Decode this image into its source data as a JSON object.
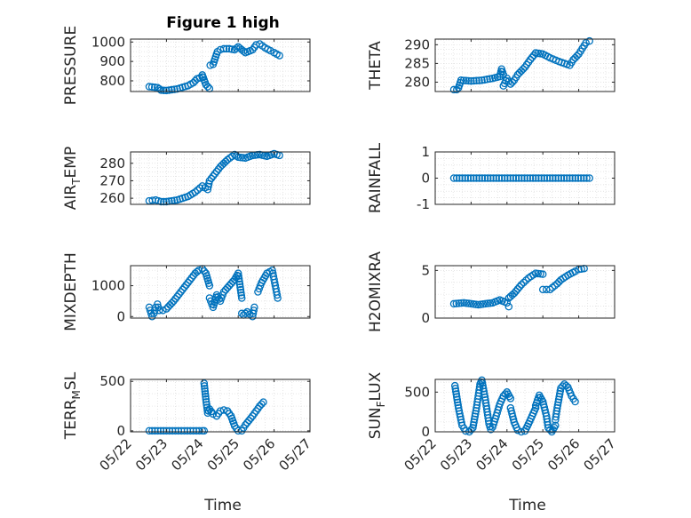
{
  "figure": {
    "title": "Figure 1 high",
    "xlabel_left": "Time",
    "xlabel_right": "Time"
  },
  "style": {
    "marker_color": "#0072BD",
    "axis_color": "#262626",
    "grid_color": "#dcdcdc",
    "background": "#ffffff"
  },
  "x_axis": {
    "range": [
      "05/22",
      "05/27"
    ],
    "tick_values": [
      0,
      1,
      2,
      3,
      4,
      5
    ],
    "tick_labels": [
      "05/22",
      "05/23",
      "05/24",
      "05/25",
      "05/26",
      "05/27"
    ]
  },
  "chart_data": [
    {
      "type": "scatter",
      "id": "pressure",
      "title": "Figure 1 high",
      "ylabel": "PRESSURE",
      "ylabel_sub": "",
      "ylim": [
        745,
        1015
      ],
      "yticks": [
        800,
        900,
        1000
      ],
      "grid": true,
      "segments": [
        {
          "x": [
            0.52,
            0.75,
            0.85,
            1.0,
            1.3,
            1.6,
            1.75,
            1.85,
            2.0
          ],
          "y": [
            770,
            765,
            752,
            750,
            758,
            775,
            790,
            810,
            820
          ]
        },
        {
          "x": [
            2.0,
            2.1,
            2.2
          ],
          "y": [
            830,
            780,
            760
          ]
        },
        {
          "x": [
            2.22,
            2.3,
            2.42,
            2.5,
            2.6,
            2.75,
            2.9,
            3.0,
            3.1,
            3.2,
            3.4,
            3.5,
            3.6,
            3.75,
            3.9,
            4.0,
            4.15
          ],
          "y": [
            880,
            885,
            950,
            960,
            965,
            965,
            960,
            975,
            960,
            945,
            960,
            985,
            990,
            970,
            955,
            945,
            930
          ]
        }
      ]
    },
    {
      "type": "scatter",
      "id": "theta",
      "ylabel": "THETA",
      "ylabel_sub": "",
      "ylim": [
        277.5,
        291.5
      ],
      "yticks": [
        280,
        285,
        290
      ],
      "grid": true,
      "segments": [
        {
          "x": [
            0.52,
            0.6,
            0.65,
            0.72
          ],
          "y": [
            278,
            278,
            278.5,
            280.5
          ]
        },
        {
          "x": [
            0.72,
            1.0,
            1.3,
            1.6,
            1.8,
            1.85,
            1.9
          ],
          "y": [
            280.5,
            280.3,
            280.5,
            281,
            281.5,
            283.5,
            282
          ]
        },
        {
          "x": [
            1.9,
            2.0,
            2.1,
            2.2,
            2.3,
            2.5,
            2.65,
            2.8
          ],
          "y": [
            279,
            281,
            279.5,
            280.5,
            282,
            284,
            286,
            287.8
          ]
        },
        {
          "x": [
            2.8,
            3.0,
            3.2,
            3.45,
            3.6,
            3.75,
            3.85,
            4.0,
            4.1,
            4.2,
            4.3
          ],
          "y": [
            287.8,
            287.5,
            286.5,
            285.5,
            285,
            284.5,
            286,
            287.5,
            289,
            290.5,
            291
          ]
        }
      ]
    },
    {
      "type": "scatter",
      "id": "air_temp",
      "ylabel": "AIR",
      "ylabel_sub": "T",
      "ylabel_suffix": "EMP",
      "ylim": [
        256.5,
        286.5
      ],
      "yticks": [
        260,
        270,
        280
      ],
      "grid": true,
      "segments": [
        {
          "x": [
            0.52,
            0.7,
            0.85,
            1.0,
            1.3,
            1.6,
            1.8,
            2.0,
            2.15,
            2.2,
            2.35,
            2.5,
            2.7,
            2.9,
            3.0,
            3.2,
            3.4,
            3.6,
            3.8,
            4.0,
            4.15
          ],
          "y": [
            258.5,
            259,
            258,
            258,
            259,
            261,
            263.5,
            267,
            265,
            270,
            274,
            278,
            282,
            285,
            283.5,
            283,
            284.5,
            285,
            284,
            285.5,
            284.5
          ]
        }
      ]
    },
    {
      "type": "scatter",
      "id": "rainfall",
      "ylabel": "RAINFALL",
      "ylabel_sub": "",
      "ylim": [
        -1,
        1
      ],
      "yticks": [
        -1,
        0,
        1
      ],
      "grid": true,
      "segments": [
        {
          "x": [
            0.52,
            4.3
          ],
          "y": [
            0,
            0
          ]
        }
      ]
    },
    {
      "type": "scatter",
      "id": "mixdepth",
      "ylabel": "MIXDEPTH",
      "ylabel_sub": "",
      "ylim": [
        -50,
        1650
      ],
      "yticks": [
        0,
        1000
      ],
      "grid": true,
      "segments": [
        {
          "x": [
            0.52,
            0.6,
            0.65,
            0.7,
            0.75,
            0.8,
            0.9,
            1.0,
            1.2,
            1.4,
            1.6,
            1.7,
            1.8,
            1.9,
            2.0,
            2.1,
            2.2
          ],
          "y": [
            300,
            0,
            100,
            300,
            400,
            200,
            200,
            250,
            500,
            800,
            1100,
            1250,
            1400,
            1500,
            1550,
            1400,
            1000
          ]
        },
        {
          "x": [
            2.2,
            2.3,
            2.4,
            2.5,
            2.6,
            2.75,
            2.9,
            3.0,
            3.1
          ],
          "y": [
            600,
            300,
            700,
            500,
            800,
            1000,
            1200,
            1400,
            600
          ]
        },
        {
          "x": [
            3.1,
            3.15,
            3.25,
            3.4,
            3.45
          ],
          "y": [
            100,
            50,
            150,
            0,
            300
          ]
        },
        {
          "x": [
            3.55,
            3.65,
            3.8,
            3.95,
            4.0,
            4.05,
            4.1
          ],
          "y": [
            800,
            1100,
            1400,
            1500,
            1200,
            900,
            600
          ]
        }
      ]
    },
    {
      "type": "scatter",
      "id": "h2omixra",
      "ylabel": "H2OMIXRA",
      "ylabel_sub": "",
      "ylim": [
        0,
        5.5
      ],
      "yticks": [
        0,
        5
      ],
      "grid": true,
      "segments": [
        {
          "x": [
            0.52,
            0.8,
            1.0,
            1.2,
            1.4,
            1.6,
            1.8,
            2.0,
            2.05
          ],
          "y": [
            1.5,
            1.6,
            1.5,
            1.4,
            1.5,
            1.6,
            1.9,
            1.6,
            1.2
          ]
        },
        {
          "x": [
            2.05,
            2.2,
            2.4,
            2.6,
            2.8,
            3.0
          ],
          "y": [
            2.1,
            2.6,
            3.5,
            4.2,
            4.7,
            4.6
          ]
        },
        {
          "x": [
            3.0,
            3.1,
            3.2,
            3.4,
            3.5,
            3.7,
            3.9,
            4.0,
            4.15
          ],
          "y": [
            3.0,
            3.0,
            3.0,
            3.6,
            4.0,
            4.5,
            4.9,
            5.1,
            5.2
          ]
        }
      ]
    },
    {
      "type": "scatter",
      "id": "terr_msl",
      "ylabel": "TERR",
      "ylabel_sub": "M",
      "ylabel_suffix": "SL",
      "ylim": [
        -10,
        520
      ],
      "yticks": [
        0,
        500
      ],
      "grid": true,
      "segments": [
        {
          "x": [
            0.52,
            1.0,
            1.5,
            2.0,
            2.05
          ],
          "y": [
            0,
            0,
            0,
            0,
            0
          ]
        },
        {
          "x": [
            2.05,
            2.1,
            2.15,
            2.2,
            2.3,
            2.4,
            2.5,
            2.6,
            2.7
          ],
          "y": [
            480,
            320,
            180,
            220,
            170,
            150,
            200,
            210,
            200
          ]
        },
        {
          "x": [
            2.7,
            2.8,
            2.9,
            3.0,
            3.1,
            3.2,
            3.4,
            3.5,
            3.6,
            3.7
          ],
          "y": [
            200,
            150,
            50,
            0,
            0,
            60,
            150,
            200,
            250,
            290
          ]
        }
      ]
    },
    {
      "type": "scatter",
      "id": "sun_flux",
      "ylabel": "SUN",
      "ylabel_sub": "F",
      "ylabel_suffix": "LUX",
      "ylim": [
        0,
        660
      ],
      "yticks": [
        0,
        500
      ],
      "grid": true,
      "segments": [
        {
          "x": [
            0.55,
            0.65,
            0.75,
            0.85,
            0.95,
            1.05,
            1.15,
            1.25
          ],
          "y": [
            580,
            300,
            80,
            10,
            0,
            50,
            300,
            600
          ]
        },
        {
          "x": [
            1.25,
            1.3,
            1.4,
            1.5,
            1.55,
            1.6,
            1.7,
            1.8,
            1.9,
            2.0,
            2.1
          ],
          "y": [
            600,
            650,
            400,
            100,
            30,
            60,
            200,
            350,
            450,
            500,
            420
          ]
        },
        {
          "x": [
            2.1,
            2.2,
            2.3,
            2.4,
            2.5,
            2.6,
            2.7,
            2.8
          ],
          "y": [
            300,
            120,
            20,
            0,
            10,
            100,
            200,
            300
          ]
        },
        {
          "x": [
            2.8,
            2.9,
            3.0,
            3.1,
            3.15,
            3.25,
            3.35
          ],
          "y": [
            330,
            460,
            380,
            200,
            50,
            0,
            80
          ]
        },
        {
          "x": [
            3.35,
            3.4,
            3.5,
            3.6,
            3.7,
            3.8,
            3.9
          ],
          "y": [
            150,
            300,
            550,
            600,
            560,
            450,
            380
          ]
        }
      ]
    }
  ]
}
